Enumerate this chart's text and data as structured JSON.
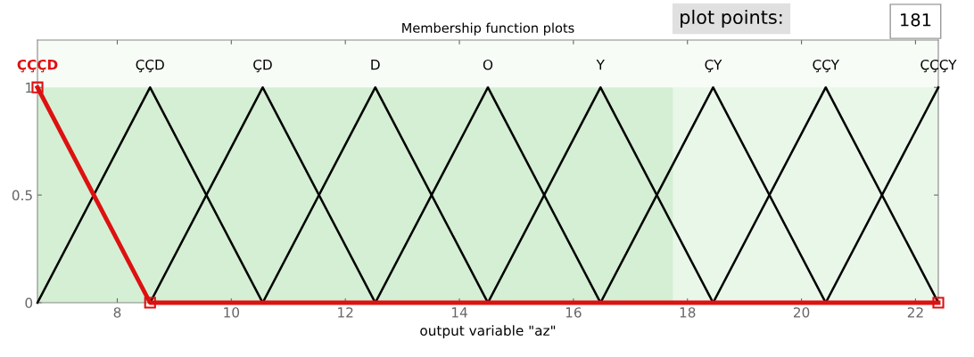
{
  "chart_data": {
    "type": "line",
    "title": "Membership function plots",
    "xlabel": "output variable \"az\"",
    "annotations": [
      "plot points:",
      "181"
    ],
    "xlim": [
      6.6,
      22.4
    ],
    "xticks": [
      8,
      10,
      12,
      14,
      16,
      18,
      20,
      22
    ],
    "ylim": [
      0,
      1.22
    ],
    "yticks": [
      0,
      0.5,
      1
    ],
    "grid": false,
    "legend": false,
    "marker": "none",
    "line_style": "solid",
    "bands": [
      {
        "axis": "x",
        "from": 6.6,
        "to": 17.75,
        "color": "#d4efd4"
      },
      {
        "axis": "x",
        "from": 17.75,
        "to": 22.4,
        "color": "#e9f7e9"
      }
    ],
    "series": [
      {
        "name": "ÇÇÇD",
        "color": "#dd1111",
        "x": [
          6.6,
          8.575,
          22.4
        ],
        "values": [
          1,
          0,
          0
        ],
        "marker": "square"
      },
      {
        "name": "ÇÇD",
        "color": "#000000",
        "x": [
          6.6,
          8.575,
          10.55
        ],
        "values": [
          0,
          1,
          0
        ]
      },
      {
        "name": "ÇD",
        "color": "#000000",
        "x": [
          8.575,
          10.55,
          12.525
        ],
        "values": [
          0,
          1,
          0
        ]
      },
      {
        "name": "D",
        "color": "#000000",
        "x": [
          10.55,
          12.525,
          14.5
        ],
        "values": [
          0,
          1,
          0
        ]
      },
      {
        "name": "O",
        "color": "#000000",
        "x": [
          12.525,
          14.5,
          16.475
        ],
        "values": [
          0,
          1,
          0
        ]
      },
      {
        "name": "Y",
        "color": "#000000",
        "x": [
          14.5,
          16.475,
          18.45
        ],
        "values": [
          0,
          1,
          0
        ]
      },
      {
        "name": "ÇY",
        "color": "#000000",
        "x": [
          16.475,
          18.45,
          20.425
        ],
        "values": [
          0,
          1,
          0
        ]
      },
      {
        "name": "ÇÇY",
        "color": "#000000",
        "x": [
          18.45,
          20.425,
          22.4
        ],
        "values": [
          0,
          1,
          0
        ]
      },
      {
        "name": "ÇÇÇY",
        "color": "#000000",
        "x": [
          20.425,
          22.4
        ],
        "values": [
          0,
          1
        ]
      }
    ]
  }
}
